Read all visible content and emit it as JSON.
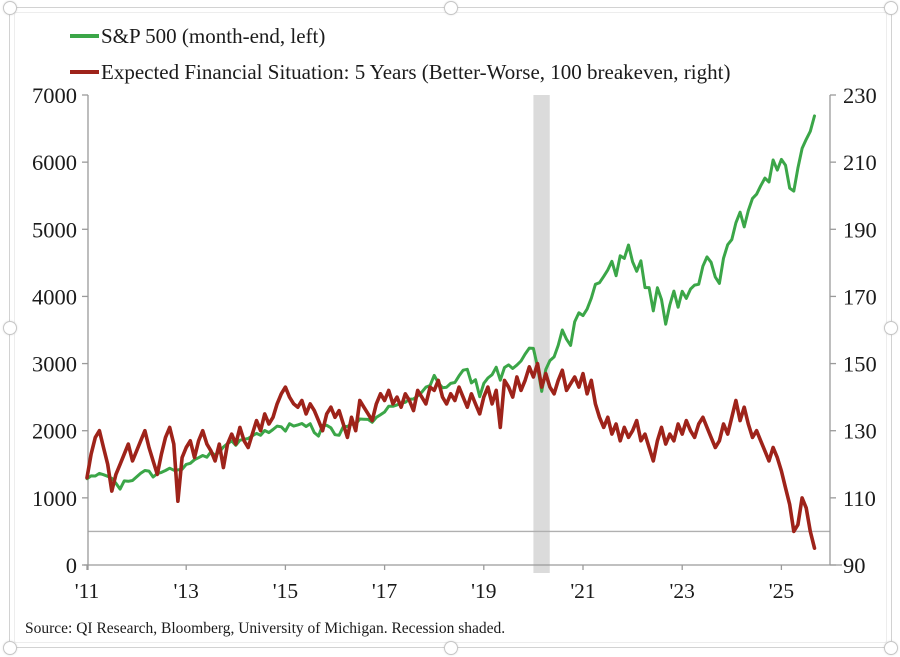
{
  "legend": [
    {
      "label": "S&P 500 (month-end, left)",
      "color": "#3BA648"
    },
    {
      "label": "Expected Financial Situation: 5 Years (Better-Worse, 100 breakeven, right)",
      "color": "#9E231A"
    }
  ],
  "source_note": "Source: QI Research, Bloomberg, University of Michigan. Recession shaded.",
  "colors": {
    "sp500_line": "#3BA648",
    "sentiment_line": "#9E231A",
    "axis": "#9a9a9a",
    "tick_label": "#1b1b1b",
    "recession_band": "#d8d8d8",
    "breakeven_line": "#b0b0b0",
    "background": "#ffffff"
  },
  "chart_data": {
    "type": "line",
    "title": "",
    "x_start_year": 2011,
    "x_frequency": "monthly",
    "x_tick_labels": [
      "'11",
      "'13",
      "'15",
      "'17",
      "'19",
      "'21",
      "'23",
      "'25"
    ],
    "x_tick_years": [
      2011,
      2013,
      2015,
      2017,
      2019,
      2021,
      2023,
      2025
    ],
    "left_axis": {
      "min": 0,
      "max": 7000,
      "ticks": [
        0,
        1000,
        2000,
        3000,
        4000,
        5000,
        6000,
        7000
      ]
    },
    "right_axis": {
      "min": 90,
      "max": 230,
      "ticks": [
        90,
        110,
        130,
        150,
        170,
        190,
        210,
        230
      ]
    },
    "breakeven_right_value": 100,
    "recession_band": {
      "start_year": 2020.0,
      "end_year": 2020.33
    },
    "grid": false,
    "legend_position": "top-left",
    "series": [
      {
        "name": "S&P 500 (month-end, left)",
        "axis": "left",
        "color": "#3BA648",
        "stroke_width": 3,
        "values": [
          1286,
          1327,
          1326,
          1364,
          1345,
          1321,
          1292,
          1219,
          1131,
          1253,
          1247,
          1258,
          1312,
          1366,
          1408,
          1398,
          1310,
          1362,
          1379,
          1407,
          1441,
          1412,
          1416,
          1426,
          1498,
          1515,
          1569,
          1598,
          1631,
          1606,
          1686,
          1633,
          1682,
          1757,
          1806,
          1848,
          1783,
          1859,
          1872,
          1884,
          1924,
          1960,
          1931,
          2003,
          1972,
          2018,
          2068,
          2059,
          1995,
          2105,
          2068,
          2086,
          2107,
          2063,
          2104,
          1972,
          1920,
          2079,
          2080,
          2044,
          1940,
          1932,
          2060,
          2065,
          2097,
          2099,
          2174,
          2171,
          2168,
          2126,
          2199,
          2239,
          2279,
          2364,
          2363,
          2384,
          2412,
          2423,
          2470,
          2472,
          2519,
          2575,
          2648,
          2674,
          2824,
          2714,
          2641,
          2648,
          2705,
          2718,
          2816,
          2902,
          2914,
          2712,
          2760,
          2507,
          2704,
          2785,
          2834,
          2946,
          2752,
          2942,
          2980,
          2926,
          2977,
          3038,
          3141,
          3231,
          3226,
          2954,
          2585,
          2912,
          3044,
          3100,
          3271,
          3500,
          3363,
          3270,
          3622,
          3756,
          3714,
          3811,
          3973,
          4181,
          4204,
          4298,
          4395,
          4523,
          4308,
          4605,
          4567,
          4766,
          4516,
          4374,
          4530,
          4132,
          4132,
          3785,
          4130,
          3955,
          3586,
          3872,
          4080,
          3840,
          4077,
          3970,
          4109,
          4169,
          4180,
          4450,
          4589,
          4508,
          4288,
          4194,
          4568,
          4770,
          4846,
          5096,
          5254,
          5036,
          5278,
          5460,
          5522,
          5648,
          5762,
          5705,
          6032,
          5882,
          6041,
          5955,
          5612,
          5569,
          5912,
          6205,
          6339,
          6460,
          6688
        ]
      },
      {
        "name": "Expected Financial Situation: 5 Years (Better-Worse, 100 breakeven, right)",
        "axis": "right",
        "color": "#9E231A",
        "stroke_width": 3.6,
        "values": [
          116,
          123,
          128,
          130,
          125,
          120,
          112,
          117,
          120,
          123,
          126,
          121,
          124,
          127,
          130,
          125,
          121,
          117,
          123,
          128,
          131,
          126,
          109,
          122,
          125,
          127,
          122,
          127,
          130,
          126,
          124,
          121,
          126,
          119,
          126,
          129,
          126,
          131,
          127,
          125,
          129,
          133,
          130,
          135,
          132,
          134,
          138,
          141,
          143,
          140,
          138,
          137,
          139,
          135,
          138,
          136,
          133,
          130,
          135,
          137,
          134,
          136,
          132,
          128,
          134,
          130,
          139,
          137,
          135,
          133,
          138,
          141,
          139,
          142,
          138,
          140,
          137,
          141,
          139,
          136,
          142,
          140,
          138,
          143,
          142,
          145,
          140,
          138,
          141,
          139,
          143,
          140,
          137,
          141,
          138,
          135,
          140,
          143,
          138,
          142,
          131,
          145,
          143,
          140,
          146,
          142,
          145,
          149,
          146,
          150,
          143,
          147,
          143,
          141,
          145,
          148,
          142,
          144,
          146,
          143,
          147,
          141,
          145,
          138,
          134,
          131,
          134,
          129,
          132,
          127,
          131,
          128,
          130,
          133,
          127,
          129,
          125,
          121,
          127,
          131,
          126,
          129,
          127,
          132,
          129,
          133,
          130,
          128,
          132,
          134,
          131,
          128,
          125,
          127,
          132,
          129,
          134,
          139,
          133,
          137,
          132,
          128,
          130,
          127,
          124,
          121,
          125,
          122,
          118,
          113,
          108,
          100,
          102,
          110,
          107,
          100,
          95
        ]
      }
    ]
  }
}
